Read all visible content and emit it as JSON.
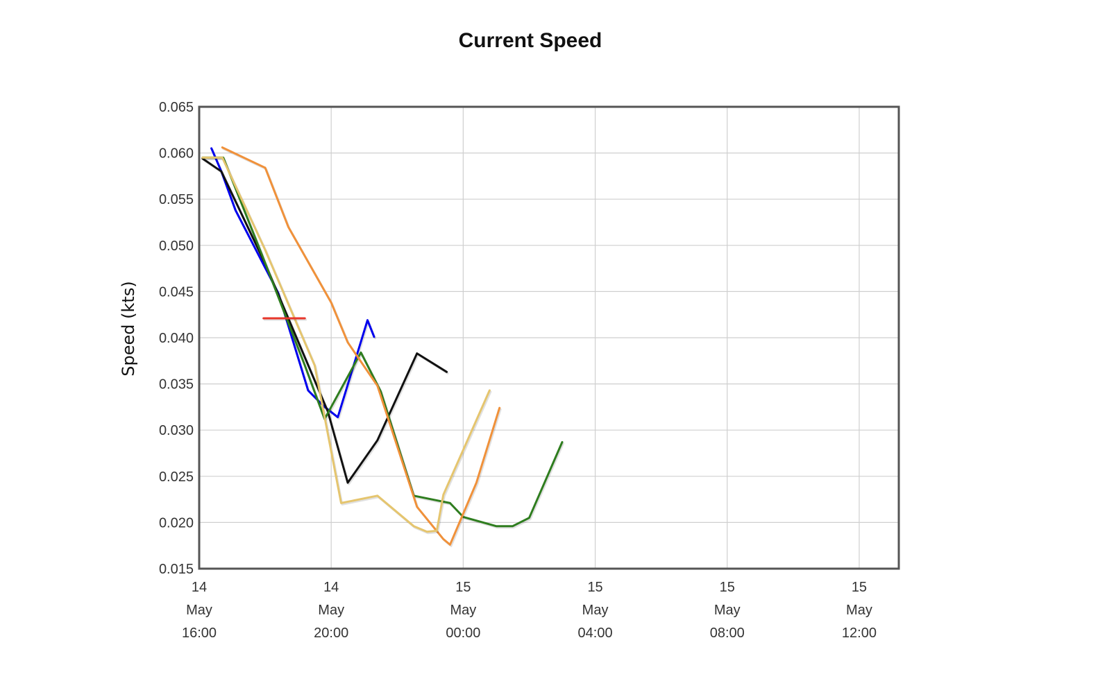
{
  "chart_data": {
    "type": "line",
    "title": "Current Speed",
    "xlabel": "",
    "ylabel": "Speed (kts)",
    "x_unit": "hours from 14 May 16:00",
    "xlim": [
      0,
      21.2
    ],
    "ylim": [
      0.015,
      0.065
    ],
    "y_ticks": [
      {
        "value": 0.015,
        "label": "0.015"
      },
      {
        "value": 0.02,
        "label": "0.020"
      },
      {
        "value": 0.025,
        "label": "0.025"
      },
      {
        "value": 0.03,
        "label": "0.030"
      },
      {
        "value": 0.035,
        "label": "0.035"
      },
      {
        "value": 0.04,
        "label": "0.040"
      },
      {
        "value": 0.045,
        "label": "0.045"
      },
      {
        "value": 0.05,
        "label": "0.050"
      },
      {
        "value": 0.055,
        "label": "0.055"
      },
      {
        "value": 0.06,
        "label": "0.060"
      },
      {
        "value": 0.065,
        "label": "0.065"
      }
    ],
    "x_ticks": [
      {
        "value": 0,
        "lines": [
          "14",
          "May",
          "16:00"
        ]
      },
      {
        "value": 4,
        "lines": [
          "14",
          "May",
          "20:00"
        ]
      },
      {
        "value": 8,
        "lines": [
          "15",
          "May",
          "00:00"
        ]
      },
      {
        "value": 12,
        "lines": [
          "15",
          "May",
          "04:00"
        ]
      },
      {
        "value": 16,
        "lines": [
          "15",
          "May",
          "08:00"
        ]
      },
      {
        "value": 20,
        "lines": [
          "15",
          "May",
          "12:00"
        ]
      }
    ],
    "grid": true,
    "legend": "none",
    "series": [
      {
        "color": "#0000ee",
        "x": [
          0.37,
          0.67,
          1.1,
          2.4,
          3.3,
          3.77,
          4.2,
          5.1,
          5.3
        ],
        "y": [
          0.0605,
          0.058,
          0.0538,
          0.0448,
          0.0343,
          0.0326,
          0.0314,
          0.0419,
          0.0401
        ]
      },
      {
        "color": "#111111",
        "x": [
          0.1,
          0.67,
          2.0,
          3.9,
          4.5,
          5.4,
          6.6,
          7.5
        ],
        "y": [
          0.0594,
          0.058,
          0.048,
          0.032,
          0.0243,
          0.0289,
          0.0383,
          0.0363
        ]
      },
      {
        "color": "#2e7d1e",
        "x": [
          0.1,
          0.73,
          1.9,
          3.2,
          3.8,
          4.9,
          5.5,
          6.5,
          7.6,
          8.0,
          8.5,
          9.0,
          9.5,
          10.0,
          11.0
        ],
        "y": [
          0.0595,
          0.0595,
          0.049,
          0.037,
          0.0312,
          0.0384,
          0.0342,
          0.0229,
          0.0221,
          0.0206,
          0.0201,
          0.0196,
          0.0196,
          0.0205,
          0.0287
        ]
      },
      {
        "color": "#f0913a",
        "x": [
          0.7,
          2.0,
          2.7,
          4.0,
          4.5,
          5.4,
          6.6,
          7.4,
          7.6,
          8.4,
          9.1
        ],
        "y": [
          0.0606,
          0.0584,
          0.052,
          0.0438,
          0.0395,
          0.0348,
          0.0217,
          0.0182,
          0.0176,
          0.0243,
          0.0324
        ]
      },
      {
        "color": "#e5c56e",
        "x": [
          0.1,
          0.7,
          2.0,
          3.5,
          4.3,
          5.4,
          6.5,
          6.9,
          7.2,
          7.4,
          8.8
        ],
        "y": [
          0.0595,
          0.0595,
          0.0495,
          0.037,
          0.0221,
          0.0229,
          0.0196,
          0.019,
          0.0191,
          0.023,
          0.0343
        ]
      },
      {
        "color": "#e8372b",
        "x": [
          1.95,
          3.2
        ],
        "y": [
          0.0421,
          0.0421
        ]
      }
    ]
  }
}
